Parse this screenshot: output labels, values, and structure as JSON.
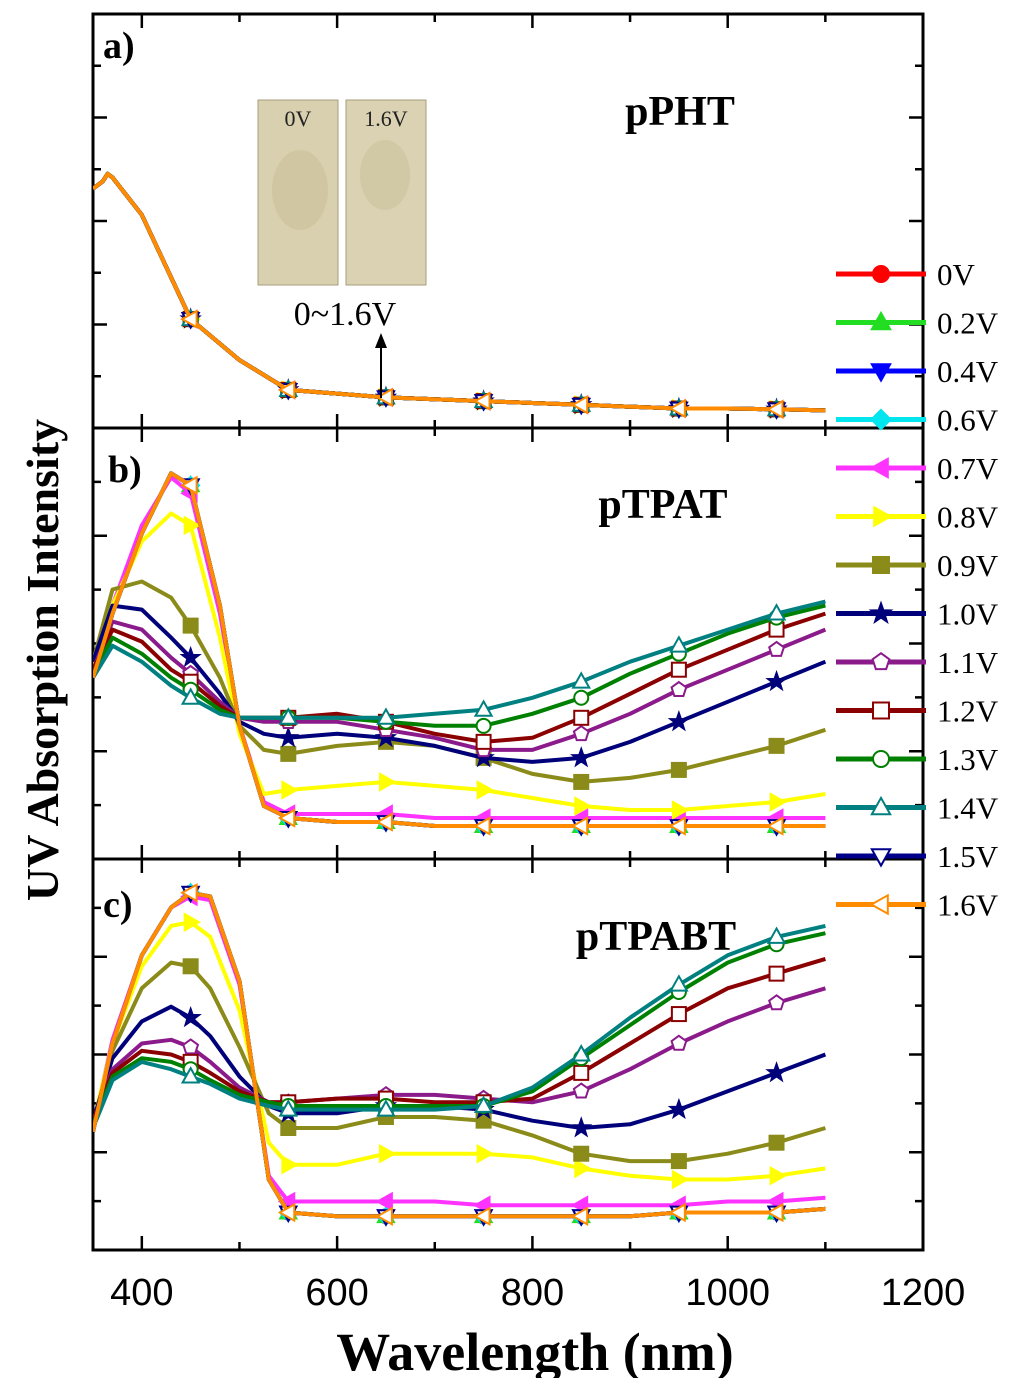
{
  "figure": {
    "ylabel": "UV Absorption Intensity",
    "xlabel": "Wavelength (nm)",
    "inset_labels": [
      "0V",
      "1.6V"
    ],
    "annotation": "0~1.6V"
  },
  "legend": [
    {
      "label": "0V",
      "color": "#ff0000",
      "marker": "circle"
    },
    {
      "label": "0.2V",
      "color": "#22dd22",
      "marker": "triangle-up"
    },
    {
      "label": "0.4V",
      "color": "#0000ff",
      "marker": "triangle-down"
    },
    {
      "label": "0.6V",
      "color": "#00e5ee",
      "marker": "diamond"
    },
    {
      "label": "0.7V",
      "color": "#ff33ff",
      "marker": "triangle-left"
    },
    {
      "label": "0.8V",
      "color": "#ffff00",
      "marker": "triangle-right"
    },
    {
      "label": "0.9V",
      "color": "#8b8b1a",
      "marker": "square"
    },
    {
      "label": "1.0V",
      "color": "#00007a",
      "marker": "star"
    },
    {
      "label": "1.1V",
      "color": "#8b1a8b",
      "marker": "pentagon-open"
    },
    {
      "label": "1.2V",
      "color": "#8b0000",
      "marker": "square-open"
    },
    {
      "label": "1.3V",
      "color": "#008000",
      "marker": "circle-open"
    },
    {
      "label": "1.4V",
      "color": "#008080",
      "marker": "triangle-up-open"
    },
    {
      "label": "1.5V",
      "color": "#00008b",
      "marker": "triangle-down-open"
    },
    {
      "label": "1.6V",
      "color": "#ff8c00",
      "marker": "triangle-left-open"
    }
  ],
  "chart_data": [
    {
      "panel": "a)",
      "type": "line",
      "title": "pPHT",
      "xlim": [
        350,
        1200
      ],
      "xticks": [
        400,
        600,
        800,
        1000,
        1200
      ],
      "ylim": [
        0,
        1
      ],
      "series_note": "all voltages overlap",
      "x": [
        350,
        360,
        365,
        370,
        400,
        450,
        500,
        550,
        600,
        650,
        700,
        750,
        800,
        850,
        900,
        950,
        1000,
        1050,
        1100
      ],
      "values": [
        0.62,
        0.64,
        0.66,
        0.65,
        0.55,
        0.27,
        0.16,
        0.08,
        0.07,
        0.06,
        0.055,
        0.05,
        0.045,
        0.04,
        0.035,
        0.03,
        0.03,
        0.028,
        0.025
      ]
    },
    {
      "panel": "b)",
      "type": "line",
      "title": "pTPAT",
      "xlim": [
        350,
        1200
      ],
      "xticks": [
        400,
        600,
        800,
        1000,
        1200
      ],
      "ylim": [
        0,
        1
      ],
      "x": [
        350,
        370,
        400,
        430,
        450,
        480,
        500,
        525,
        550,
        600,
        650,
        700,
        750,
        800,
        850,
        900,
        950,
        1000,
        1050,
        1100
      ],
      "series": [
        {
          "name": "0V",
          "values": [
            0.42,
            0.58,
            0.78,
            0.93,
            0.9,
            0.6,
            0.3,
            0.1,
            0.07,
            0.06,
            0.06,
            0.05,
            0.05,
            0.05,
            0.05,
            0.05,
            0.05,
            0.05,
            0.05,
            0.05
          ]
        },
        {
          "name": "0.2V",
          "values": [
            0.42,
            0.58,
            0.78,
            0.93,
            0.9,
            0.6,
            0.3,
            0.1,
            0.07,
            0.06,
            0.06,
            0.05,
            0.05,
            0.05,
            0.05,
            0.05,
            0.05,
            0.05,
            0.05,
            0.05
          ]
        },
        {
          "name": "0.4V",
          "values": [
            0.42,
            0.58,
            0.78,
            0.93,
            0.9,
            0.6,
            0.3,
            0.1,
            0.07,
            0.06,
            0.06,
            0.05,
            0.05,
            0.05,
            0.05,
            0.05,
            0.05,
            0.05,
            0.05,
            0.05
          ]
        },
        {
          "name": "0.6V",
          "values": [
            0.42,
            0.58,
            0.78,
            0.93,
            0.9,
            0.6,
            0.3,
            0.1,
            0.07,
            0.06,
            0.06,
            0.05,
            0.05,
            0.05,
            0.05,
            0.05,
            0.05,
            0.05,
            0.05,
            0.05
          ]
        },
        {
          "name": "0.7V",
          "values": [
            0.43,
            0.6,
            0.8,
            0.92,
            0.88,
            0.58,
            0.3,
            0.11,
            0.08,
            0.08,
            0.08,
            0.07,
            0.07,
            0.07,
            0.07,
            0.07,
            0.07,
            0.07,
            0.07,
            0.07
          ]
        },
        {
          "name": "0.8V",
          "values": [
            0.44,
            0.6,
            0.76,
            0.83,
            0.8,
            0.52,
            0.28,
            0.13,
            0.14,
            0.15,
            0.16,
            0.15,
            0.14,
            0.12,
            0.1,
            0.09,
            0.09,
            0.1,
            0.11,
            0.13
          ]
        },
        {
          "name": "0.9V",
          "values": [
            0.46,
            0.64,
            0.66,
            0.62,
            0.55,
            0.42,
            0.3,
            0.24,
            0.23,
            0.25,
            0.26,
            0.25,
            0.22,
            0.18,
            0.16,
            0.17,
            0.19,
            0.22,
            0.25,
            0.29
          ]
        },
        {
          "name": "1.0V",
          "values": [
            0.46,
            0.6,
            0.59,
            0.52,
            0.47,
            0.38,
            0.31,
            0.28,
            0.27,
            0.28,
            0.27,
            0.25,
            0.22,
            0.21,
            0.22,
            0.26,
            0.31,
            0.36,
            0.41,
            0.46
          ]
        },
        {
          "name": "1.1V",
          "values": [
            0.44,
            0.56,
            0.54,
            0.47,
            0.43,
            0.36,
            0.32,
            0.31,
            0.31,
            0.31,
            0.29,
            0.27,
            0.24,
            0.24,
            0.28,
            0.33,
            0.39,
            0.44,
            0.49,
            0.54
          ]
        },
        {
          "name": "1.2V",
          "values": [
            0.44,
            0.54,
            0.51,
            0.44,
            0.41,
            0.35,
            0.32,
            0.32,
            0.32,
            0.33,
            0.31,
            0.28,
            0.26,
            0.27,
            0.32,
            0.38,
            0.44,
            0.49,
            0.54,
            0.58
          ]
        },
        {
          "name": "1.3V",
          "values": [
            0.43,
            0.52,
            0.48,
            0.42,
            0.39,
            0.34,
            0.32,
            0.32,
            0.32,
            0.32,
            0.31,
            0.3,
            0.3,
            0.33,
            0.37,
            0.43,
            0.48,
            0.53,
            0.57,
            0.6
          ]
        },
        {
          "name": "1.4V",
          "values": [
            0.42,
            0.5,
            0.46,
            0.4,
            0.37,
            0.33,
            0.32,
            0.32,
            0.32,
            0.32,
            0.32,
            0.33,
            0.34,
            0.37,
            0.41,
            0.46,
            0.5,
            0.54,
            0.58,
            0.61
          ]
        },
        {
          "name": "1.5V",
          "values": [
            0.42,
            0.58,
            0.78,
            0.93,
            0.9,
            0.6,
            0.3,
            0.1,
            0.07,
            0.06,
            0.06,
            0.05,
            0.05,
            0.05,
            0.05,
            0.05,
            0.05,
            0.05,
            0.05,
            0.05
          ]
        },
        {
          "name": "1.6V",
          "values": [
            0.42,
            0.58,
            0.78,
            0.93,
            0.9,
            0.6,
            0.3,
            0.1,
            0.07,
            0.06,
            0.06,
            0.05,
            0.05,
            0.05,
            0.05,
            0.05,
            0.05,
            0.05,
            0.05,
            0.05
          ]
        }
      ]
    },
    {
      "panel": "c)",
      "type": "line",
      "title": "pTPABT",
      "xlim": [
        350,
        1200
      ],
      "xticks": [
        400,
        600,
        800,
        1000,
        1200
      ],
      "ylim": [
        0,
        1
      ],
      "x": [
        350,
        370,
        400,
        430,
        450,
        470,
        500,
        530,
        550,
        600,
        650,
        700,
        750,
        800,
        850,
        900,
        950,
        1000,
        1050,
        1100
      ],
      "series": [
        {
          "name": "0V",
          "values": [
            0.29,
            0.53,
            0.77,
            0.9,
            0.94,
            0.93,
            0.7,
            0.16,
            0.07,
            0.06,
            0.06,
            0.06,
            0.06,
            0.06,
            0.06,
            0.06,
            0.07,
            0.07,
            0.07,
            0.08
          ]
        },
        {
          "name": "0.2V",
          "values": [
            0.29,
            0.53,
            0.77,
            0.9,
            0.94,
            0.93,
            0.7,
            0.16,
            0.07,
            0.06,
            0.06,
            0.06,
            0.06,
            0.06,
            0.06,
            0.06,
            0.07,
            0.07,
            0.07,
            0.08
          ]
        },
        {
          "name": "0.4V",
          "values": [
            0.29,
            0.53,
            0.77,
            0.9,
            0.94,
            0.93,
            0.7,
            0.16,
            0.07,
            0.06,
            0.06,
            0.06,
            0.06,
            0.06,
            0.06,
            0.06,
            0.07,
            0.07,
            0.07,
            0.08
          ]
        },
        {
          "name": "0.6V",
          "values": [
            0.29,
            0.53,
            0.77,
            0.9,
            0.94,
            0.93,
            0.7,
            0.16,
            0.07,
            0.06,
            0.06,
            0.06,
            0.06,
            0.06,
            0.06,
            0.06,
            0.07,
            0.07,
            0.07,
            0.08
          ]
        },
        {
          "name": "0.7V",
          "values": [
            0.3,
            0.54,
            0.77,
            0.9,
            0.93,
            0.92,
            0.69,
            0.17,
            0.1,
            0.1,
            0.1,
            0.1,
            0.09,
            0.09,
            0.09,
            0.09,
            0.09,
            0.1,
            0.1,
            0.11
          ]
        },
        {
          "name": "0.8V",
          "values": [
            0.31,
            0.53,
            0.74,
            0.85,
            0.86,
            0.82,
            0.62,
            0.26,
            0.2,
            0.2,
            0.23,
            0.23,
            0.23,
            0.22,
            0.19,
            0.17,
            0.16,
            0.16,
            0.17,
            0.19
          ]
        },
        {
          "name": "0.9V",
          "values": [
            0.31,
            0.51,
            0.68,
            0.75,
            0.74,
            0.68,
            0.52,
            0.34,
            0.3,
            0.3,
            0.33,
            0.33,
            0.32,
            0.28,
            0.23,
            0.21,
            0.21,
            0.23,
            0.26,
            0.3
          ]
        },
        {
          "name": "1.0V",
          "values": [
            0.32,
            0.49,
            0.59,
            0.63,
            0.6,
            0.55,
            0.44,
            0.36,
            0.34,
            0.34,
            0.36,
            0.36,
            0.35,
            0.32,
            0.3,
            0.31,
            0.35,
            0.4,
            0.45,
            0.5
          ]
        },
        {
          "name": "1.1V",
          "values": [
            0.32,
            0.46,
            0.53,
            0.54,
            0.52,
            0.48,
            0.41,
            0.37,
            0.37,
            0.38,
            0.39,
            0.39,
            0.38,
            0.37,
            0.4,
            0.46,
            0.53,
            0.59,
            0.64,
            0.68
          ]
        },
        {
          "name": "1.2V",
          "values": [
            0.32,
            0.45,
            0.51,
            0.5,
            0.48,
            0.45,
            0.4,
            0.37,
            0.37,
            0.38,
            0.38,
            0.37,
            0.37,
            0.38,
            0.45,
            0.53,
            0.61,
            0.68,
            0.72,
            0.76
          ]
        },
        {
          "name": "1.3V",
          "values": [
            0.31,
            0.44,
            0.49,
            0.48,
            0.46,
            0.43,
            0.39,
            0.37,
            0.36,
            0.36,
            0.36,
            0.36,
            0.36,
            0.4,
            0.49,
            0.58,
            0.67,
            0.75,
            0.8,
            0.83
          ]
        },
        {
          "name": "1.4V",
          "values": [
            0.3,
            0.43,
            0.48,
            0.46,
            0.44,
            0.42,
            0.38,
            0.36,
            0.35,
            0.35,
            0.35,
            0.35,
            0.36,
            0.41,
            0.5,
            0.6,
            0.69,
            0.77,
            0.82,
            0.85
          ]
        },
        {
          "name": "1.5V",
          "values": [
            0.29,
            0.53,
            0.77,
            0.9,
            0.94,
            0.93,
            0.7,
            0.16,
            0.07,
            0.06,
            0.06,
            0.06,
            0.06,
            0.06,
            0.06,
            0.06,
            0.07,
            0.07,
            0.07,
            0.08
          ]
        },
        {
          "name": "1.6V",
          "values": [
            0.29,
            0.53,
            0.77,
            0.9,
            0.94,
            0.93,
            0.7,
            0.16,
            0.07,
            0.06,
            0.06,
            0.06,
            0.06,
            0.06,
            0.06,
            0.06,
            0.07,
            0.07,
            0.07,
            0.08
          ]
        }
      ]
    }
  ]
}
